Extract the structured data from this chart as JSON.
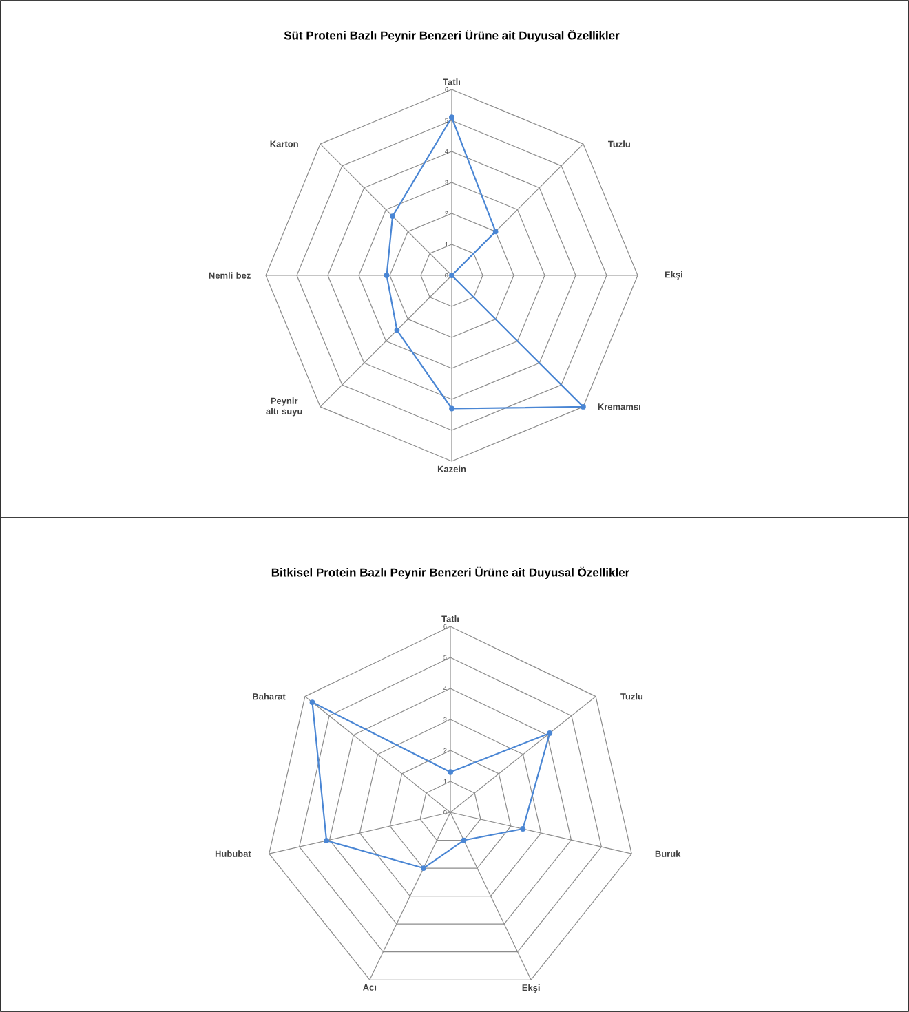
{
  "chart_data": [
    {
      "type": "radar",
      "title": "Süt Proteni Bazlı Peynir Benzeri Ürüne ait Duyusal Özellikler",
      "categories": [
        "Tatlı",
        "Tuzlu",
        "Ekşi",
        "Kremamsı",
        "Kazein",
        "Peynir altı suyu",
        "Nemli bez",
        "Karton"
      ],
      "series": [
        {
          "color": "#4a86d4",
          "values": [
            5.1,
            2.0,
            0,
            6.0,
            4.3,
            2.5,
            2.1,
            2.7
          ]
        }
      ],
      "ylim": [
        0,
        6
      ],
      "yticks": [
        0,
        1,
        2,
        3,
        4,
        5,
        6
      ],
      "grid": true,
      "marker": "circle"
    },
    {
      "type": "radar",
      "title": "Bitkisel Protein Bazlı Peynir Benzeri Ürüne ait Duyusal Özellikler",
      "categories": [
        "Tatlı",
        "Tuzlu",
        "Buruk",
        "Ekşi",
        "Acı",
        "Hububat",
        "Baharat"
      ],
      "series": [
        {
          "color": "#4a86d4",
          "values": [
            1.3,
            4.1,
            2.4,
            1.0,
            2.0,
            4.1,
            5.7
          ]
        }
      ],
      "ylim": [
        0,
        6
      ],
      "yticks": [
        0,
        1,
        2,
        3,
        4,
        5,
        6
      ],
      "grid": true,
      "marker": "circle"
    }
  ]
}
